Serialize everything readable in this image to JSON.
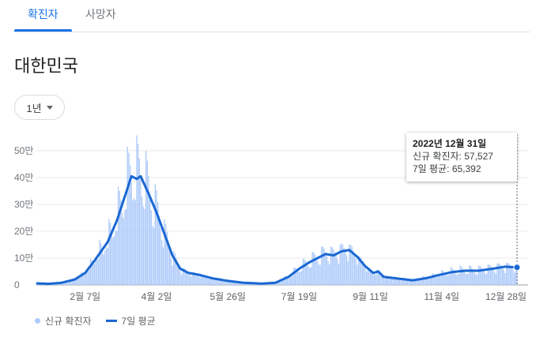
{
  "tabs": [
    "확진자",
    "사망자"
  ],
  "region": "대한민국",
  "period": "1년",
  "tooltip": {
    "date": "2022년 12월 31일",
    "new_cases_label": "신규 확진자",
    "new_cases_value": "57,527",
    "avg_label": "7일 평균",
    "avg_value": "65,392"
  },
  "legend": {
    "bars": "신규 확진자",
    "line": "7일 평균"
  },
  "colors": {
    "accent": "#1a73e8",
    "bar": "#aecbfa",
    "line": "#1a67d2"
  },
  "chart_data": {
    "type": "bar",
    "y_ticks": [
      "0",
      "10만",
      "20만",
      "30만",
      "40만",
      "50만"
    ],
    "ylim": [
      0,
      500000
    ],
    "x_ticks": [
      {
        "label": "2월 7일",
        "day": 38
      },
      {
        "label": "4월 2일",
        "day": 92
      },
      {
        "label": "5월 26일",
        "day": 146
      },
      {
        "label": "7월 19일",
        "day": 200
      },
      {
        "label": "9월 11일",
        "day": 254
      },
      {
        "label": "11월 4일",
        "day": 308
      },
      {
        "label": "12월 28일",
        "day": 362
      }
    ],
    "days": 365,
    "avg_keypoints": [
      [
        1,
        6000
      ],
      [
        10,
        4000
      ],
      [
        20,
        8000
      ],
      [
        30,
        20000
      ],
      [
        38,
        45000
      ],
      [
        45,
        90000
      ],
      [
        55,
        160000
      ],
      [
        62,
        240000
      ],
      [
        68,
        330000
      ],
      [
        73,
        405000
      ],
      [
        77,
        395000
      ],
      [
        80,
        405000
      ],
      [
        86,
        340000
      ],
      [
        92,
        270000
      ],
      [
        98,
        190000
      ],
      [
        104,
        110000
      ],
      [
        110,
        60000
      ],
      [
        116,
        45000
      ],
      [
        124,
        38000
      ],
      [
        134,
        25000
      ],
      [
        146,
        15000
      ],
      [
        158,
        8000
      ],
      [
        172,
        5000
      ],
      [
        182,
        8000
      ],
      [
        192,
        30000
      ],
      [
        200,
        60000
      ],
      [
        208,
        85000
      ],
      [
        214,
        100000
      ],
      [
        220,
        115000
      ],
      [
        226,
        110000
      ],
      [
        232,
        125000
      ],
      [
        238,
        130000
      ],
      [
        244,
        105000
      ],
      [
        250,
        70000
      ],
      [
        256,
        45000
      ],
      [
        260,
        50000
      ],
      [
        264,
        30000
      ],
      [
        276,
        23000
      ],
      [
        286,
        17000
      ],
      [
        296,
        25000
      ],
      [
        306,
        37000
      ],
      [
        316,
        48000
      ],
      [
        326,
        53000
      ],
      [
        336,
        53000
      ],
      [
        346,
        60000
      ],
      [
        356,
        68000
      ],
      [
        365,
        65392
      ]
    ],
    "tooltip_point": {
      "day": 365,
      "new_cases": 57527,
      "avg": 65392
    }
  }
}
